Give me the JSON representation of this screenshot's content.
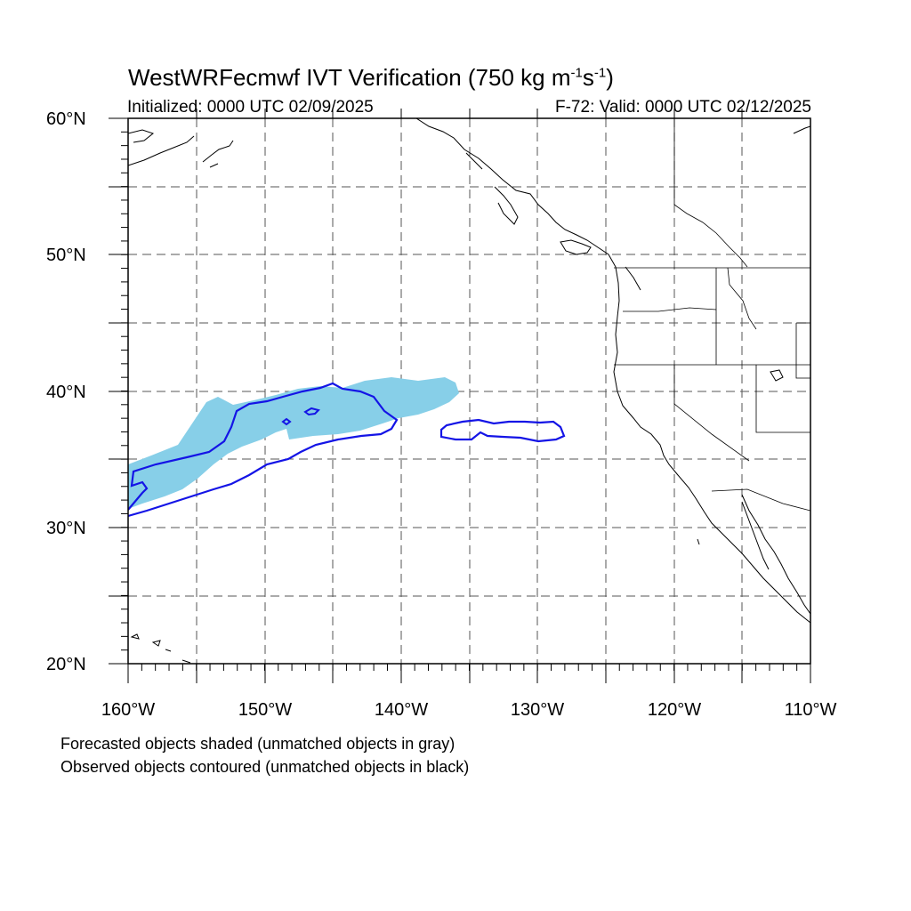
{
  "title": {
    "main": "WestWRFecmwf IVT Verification (750 kg m",
    "sup1": "-1",
    "mid": "s",
    "sup2": "-1",
    "end": ")"
  },
  "subtitle_left": "Initialized: 0000 UTC 02/09/2025",
  "subtitle_right": "F-72: Valid: 0000 UTC 02/12/2025",
  "lat_labels": [
    "60°N",
    "50°N",
    "40°N",
    "30°N",
    "20°N"
  ],
  "lon_labels": [
    "160°W",
    "150°W",
    "140°W",
    "130°W",
    "120°W",
    "110°W"
  ],
  "captions": [
    "Forecasted objects shaded (unmatched objects in gray)",
    "Observed objects contoured (unmatched objects in black)"
  ],
  "colors": {
    "forecast_fill": "#87cfe8",
    "observed_contour": "#1414e6",
    "coastline": "#000000",
    "grid": "#555555"
  }
}
